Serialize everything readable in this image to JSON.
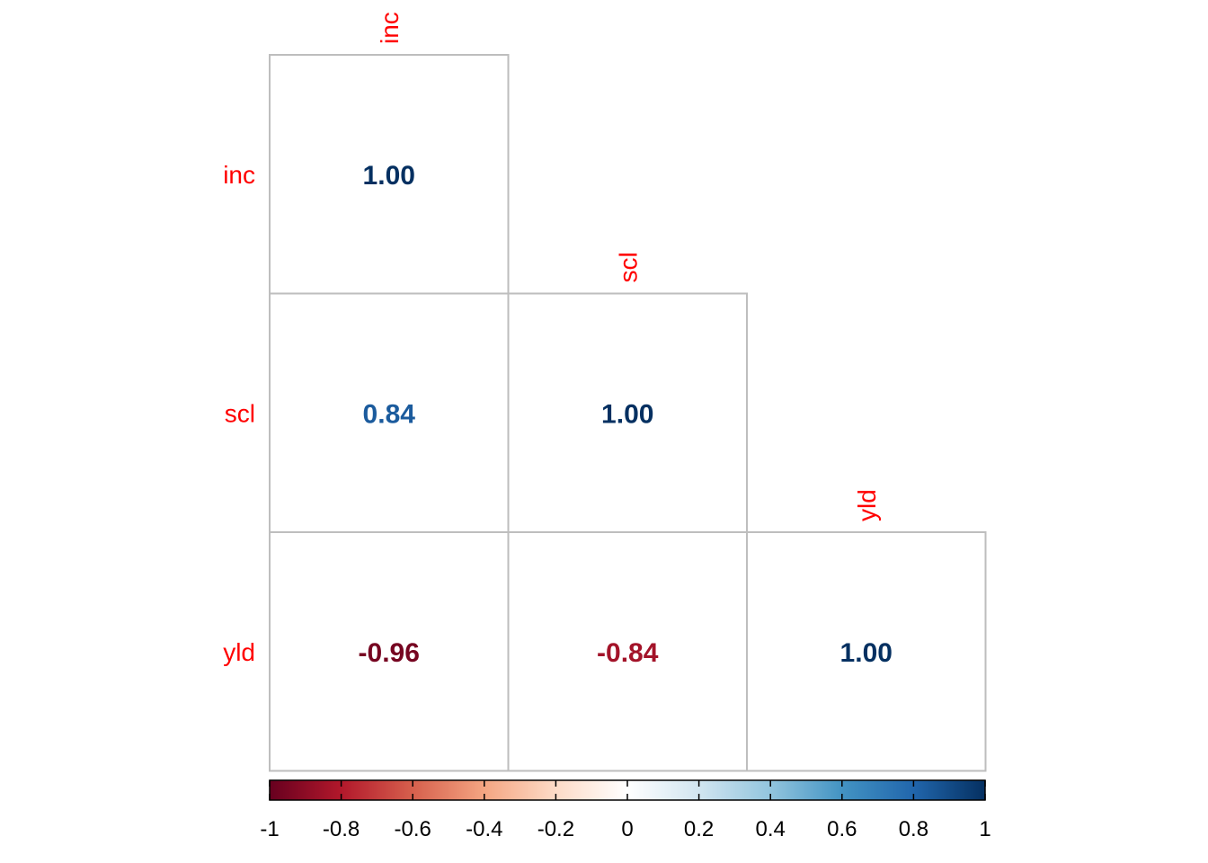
{
  "chart_data": {
    "type": "heatmap",
    "variables": [
      "inc",
      "scl",
      "yld"
    ],
    "matrix_shape": "lower",
    "method": "number",
    "values": [
      [
        1.0,
        null,
        null
      ],
      [
        0.84,
        1.0,
        null
      ],
      [
        -0.96,
        -0.84,
        1.0
      ]
    ],
    "value_labels": [
      [
        "1.00",
        "",
        ""
      ],
      [
        "0.84",
        "1.00",
        ""
      ],
      [
        "-0.96",
        "-0.84",
        "1.00"
      ]
    ],
    "colorbar": {
      "range": [
        -1,
        1
      ],
      "ticks": [
        -1,
        -0.8,
        -0.6,
        -0.4,
        -0.2,
        0,
        0.2,
        0.4,
        0.6,
        0.8,
        1
      ],
      "tick_labels": [
        "-1",
        "-0.8",
        "-0.6",
        "-0.4",
        "-0.2",
        "0",
        "0.2",
        "0.4",
        "0.6",
        "0.8",
        "1"
      ],
      "palette": [
        "#67001f",
        "#b2182b",
        "#d6604d",
        "#f4a582",
        "#fddbc7",
        "#ffffff",
        "#d1e5f0",
        "#92c5de",
        "#4393c3",
        "#2166ac",
        "#053061"
      ]
    },
    "label_color": "#ff0000",
    "grid_color": "#bebebe"
  }
}
